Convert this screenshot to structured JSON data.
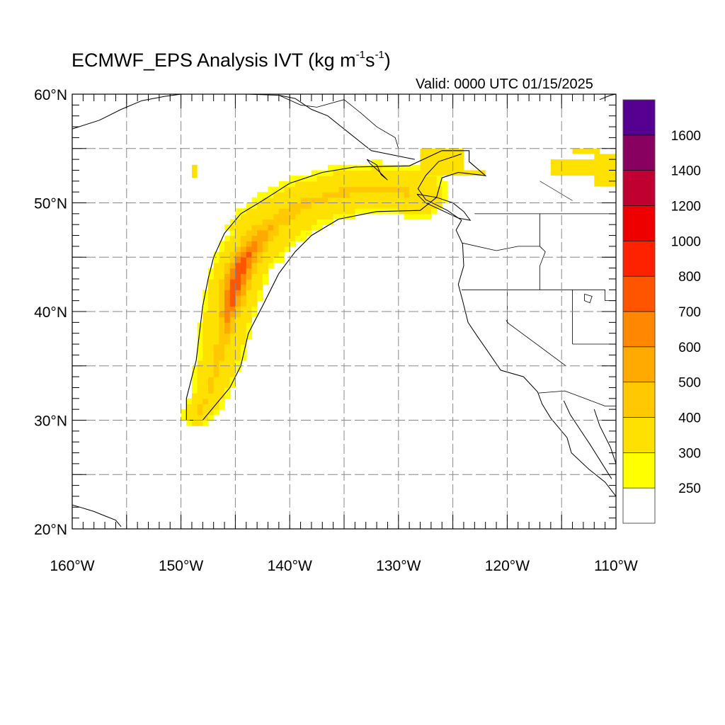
{
  "title": {
    "prefix": "ECMWF_EPS Analysis IVT (kg m",
    "exp1": "-1",
    "mid": "s",
    "exp2": "-1",
    "suffix": ")"
  },
  "valid_time": "Valid: 0000 UTC 01/15/2025",
  "map": {
    "lon_range": [
      -160,
      -110
    ],
    "lat_range": [
      20,
      60
    ],
    "grid_lon_step": 5,
    "grid_lat_step": 5,
    "grid_style": "dashed",
    "lon_labels": [
      {
        "lon": -160,
        "text": "160°W"
      },
      {
        "lon": -150,
        "text": "150°W"
      },
      {
        "lon": -140,
        "text": "140°W"
      },
      {
        "lon": -130,
        "text": "130°W"
      },
      {
        "lon": -120,
        "text": "120°W"
      },
      {
        "lon": -110,
        "text": "110°W"
      }
    ],
    "lat_labels": [
      {
        "lat": 20,
        "text": "20°N"
      },
      {
        "lat": 30,
        "text": "30°N"
      },
      {
        "lat": 40,
        "text": "40°N"
      },
      {
        "lat": 50,
        "text": "50°N"
      },
      {
        "lat": 60,
        "text": "60°N"
      }
    ]
  },
  "colorbar": {
    "levels": [
      "250",
      "300",
      "400",
      "500",
      "600",
      "700",
      "800",
      "1000",
      "1200",
      "1400",
      "1600"
    ],
    "colors": [
      "#ffffff",
      "#ffff00",
      "#ffe100",
      "#ffc800",
      "#ffaa00",
      "#ff8800",
      "#ff5500",
      "#ff2200",
      "#ee0000",
      "#c00030",
      "#880060",
      "#550090"
    ]
  },
  "ivt_field": {
    "description_units": "kg m-1 s-1",
    "core_path_lonlat": [
      [
        -148.5,
        30.5
      ],
      [
        -147.5,
        32.2
      ],
      [
        -146.8,
        34.5
      ],
      [
        -146.2,
        37.0
      ],
      [
        -145.6,
        40.0
      ],
      [
        -145.0,
        42.5
      ],
      [
        -144.2,
        44.8
      ],
      [
        -142.8,
        47.0
      ],
      [
        -141.0,
        48.6
      ],
      [
        -138.5,
        50.0
      ],
      [
        -135.5,
        51.0
      ],
      [
        -132.0,
        51.4
      ],
      [
        -128.0,
        51.0
      ]
    ],
    "peak_value_range": "700-800",
    "peak_location_lonlat": [
      -145,
      43
    ]
  }
}
